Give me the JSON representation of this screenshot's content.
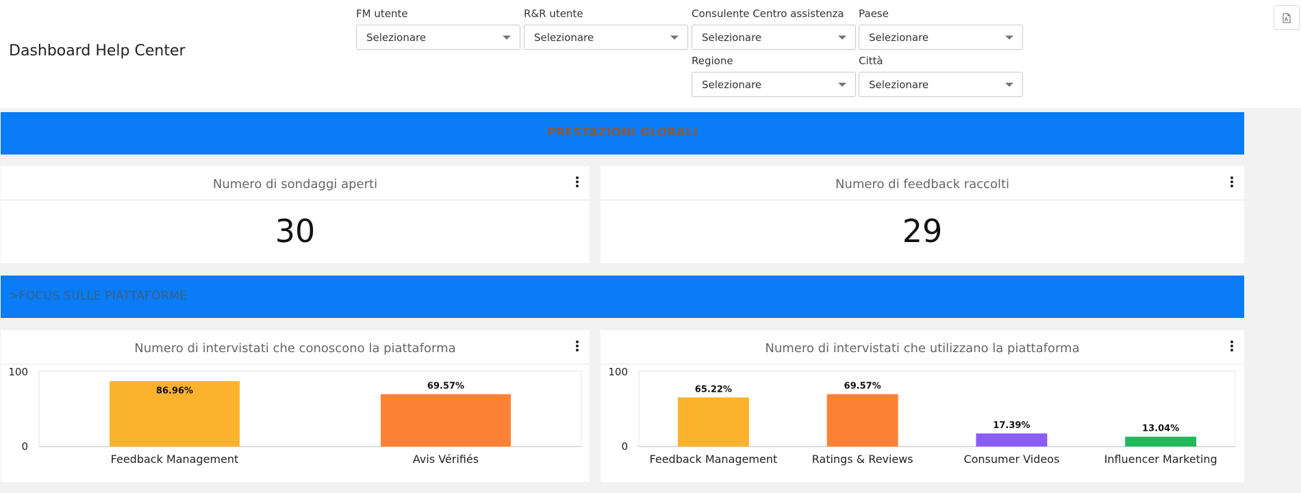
{
  "app": {
    "title": "Dashboard Help Center"
  },
  "toolbar": {
    "pdf_icon": "pdf-export-icon"
  },
  "filters": [
    {
      "label": "FM utente",
      "value": "Selezionare"
    },
    {
      "label": "R&R utente",
      "value": "Selezionare"
    },
    {
      "label": "Consulente Centro assistenza",
      "value": "Selezionare"
    },
    {
      "label": "Paese",
      "value": "Selezionare"
    },
    {
      "label": "Regione",
      "value": "Selezionare"
    },
    {
      "label": "Città",
      "value": "Selezionare"
    }
  ],
  "sections": {
    "global": {
      "title": "PRESTAZIONI GLOBALI"
    },
    "platforms": {
      "title": ">FOCUS SULLE PIATTAFORME"
    }
  },
  "kpis": {
    "surveys": {
      "title": "Numero di sondaggi aperti",
      "value": "30"
    },
    "feedback": {
      "title": "Numero di feedback raccolti",
      "value": "29"
    }
  },
  "chart_data": [
    {
      "type": "bar",
      "title": "Numero di intervistati che conoscono la piattaforma",
      "categories": [
        "Feedback Management",
        "Avis Vérifiés"
      ],
      "values": [
        86.96,
        69.57
      ],
      "labels": [
        "86.96%",
        "69.57%"
      ],
      "colors": [
        "#fdb22e",
        "#ff8135"
      ],
      "ylim": [
        0,
        100
      ],
      "yticks": [
        "100",
        "0"
      ],
      "grid": false
    },
    {
      "type": "bar",
      "title": "Numero di intervistati che utilizzano la piattaforma",
      "categories": [
        "Feedback Management",
        "Ratings & Reviews",
        "Consumer Videos",
        "Influencer Marketing"
      ],
      "values": [
        65.22,
        69.57,
        17.39,
        13.04
      ],
      "labels": [
        "65.22%",
        "69.57%",
        "17.39%",
        "13.04%"
      ],
      "colors": [
        "#fdb22e",
        "#ff8135",
        "#8b5cf6",
        "#22b85c"
      ],
      "ylim": [
        0,
        100
      ],
      "yticks": [
        "100",
        "0"
      ],
      "grid": false
    }
  ]
}
